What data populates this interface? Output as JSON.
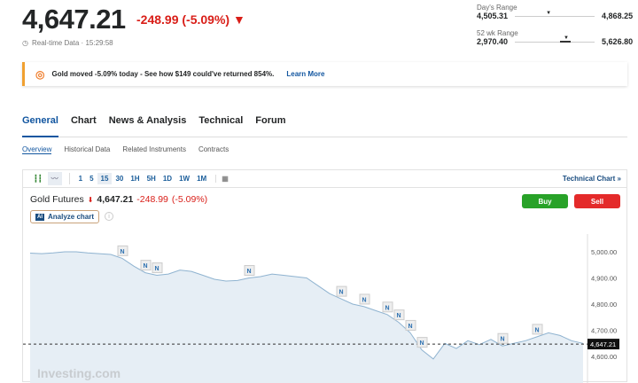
{
  "header": {
    "price": "4,647.21",
    "change": "-248.99 (-5.09%)",
    "realtime": "Real-time Data · 15:29:58"
  },
  "ranges": [
    {
      "label": "Day's Range",
      "low": "4,505.31",
      "high": "4,868.25",
      "position": 0.39
    },
    {
      "label": "52 wk Range",
      "low": "2,970.40",
      "high": "5,626.80",
      "position": 0.63
    }
  ],
  "banner": {
    "text": "Gold moved -5.09% today - See how $149 could've returned 854%.",
    "link": "Learn More",
    "accent": "#f0a030"
  },
  "tabs": [
    "General",
    "Chart",
    "News & Analysis",
    "Technical",
    "Forum"
  ],
  "subtabs": [
    "Overview",
    "Historical Data",
    "Related Instruments",
    "Contracts"
  ],
  "toolbar": {
    "intervals": [
      "1",
      "5",
      "15",
      "30",
      "1H",
      "5H",
      "1D",
      "1W",
      "1M"
    ],
    "selected": "15",
    "technical_link": "Technical Chart »"
  },
  "instrument": {
    "name": "Gold Futures",
    "price": "4,647.21",
    "change": "-248.99",
    "percent": "(-5.09%)",
    "analyze": "Analyze chart",
    "buy": "Buy",
    "sell": "Sell"
  },
  "chart_data": {
    "type": "area",
    "y_ticks": [
      "5,000.00",
      "4,900.00",
      "4,800.00",
      "4,700.00",
      "4,600.00"
    ],
    "ylim": [
      4580,
      5010
    ],
    "last_label": "4,647.21",
    "last": 4647.21,
    "values": [
      4995,
      4993,
      4996,
      5000,
      5000,
      4996,
      4993,
      4990,
      4975,
      4945,
      4920,
      4910,
      4915,
      4930,
      4925,
      4910,
      4895,
      4888,
      4890,
      4900,
      4905,
      4915,
      4910,
      4905,
      4900,
      4870,
      4840,
      4820,
      4800,
      4790,
      4775,
      4760,
      4730,
      4690,
      4625,
      4590,
      4650,
      4630,
      4660,
      4645,
      4665,
      4640,
      4650,
      4660,
      4675,
      4690,
      4680,
      4660,
      4650
    ],
    "news_marker_indices": [
      8,
      10,
      11,
      19,
      27,
      29,
      31,
      32,
      33,
      34,
      41,
      44
    ],
    "watermark": "Investing.com"
  },
  "colors": {
    "up": "#2aa52a",
    "down": "#d91e18",
    "link": "#1256a0"
  }
}
